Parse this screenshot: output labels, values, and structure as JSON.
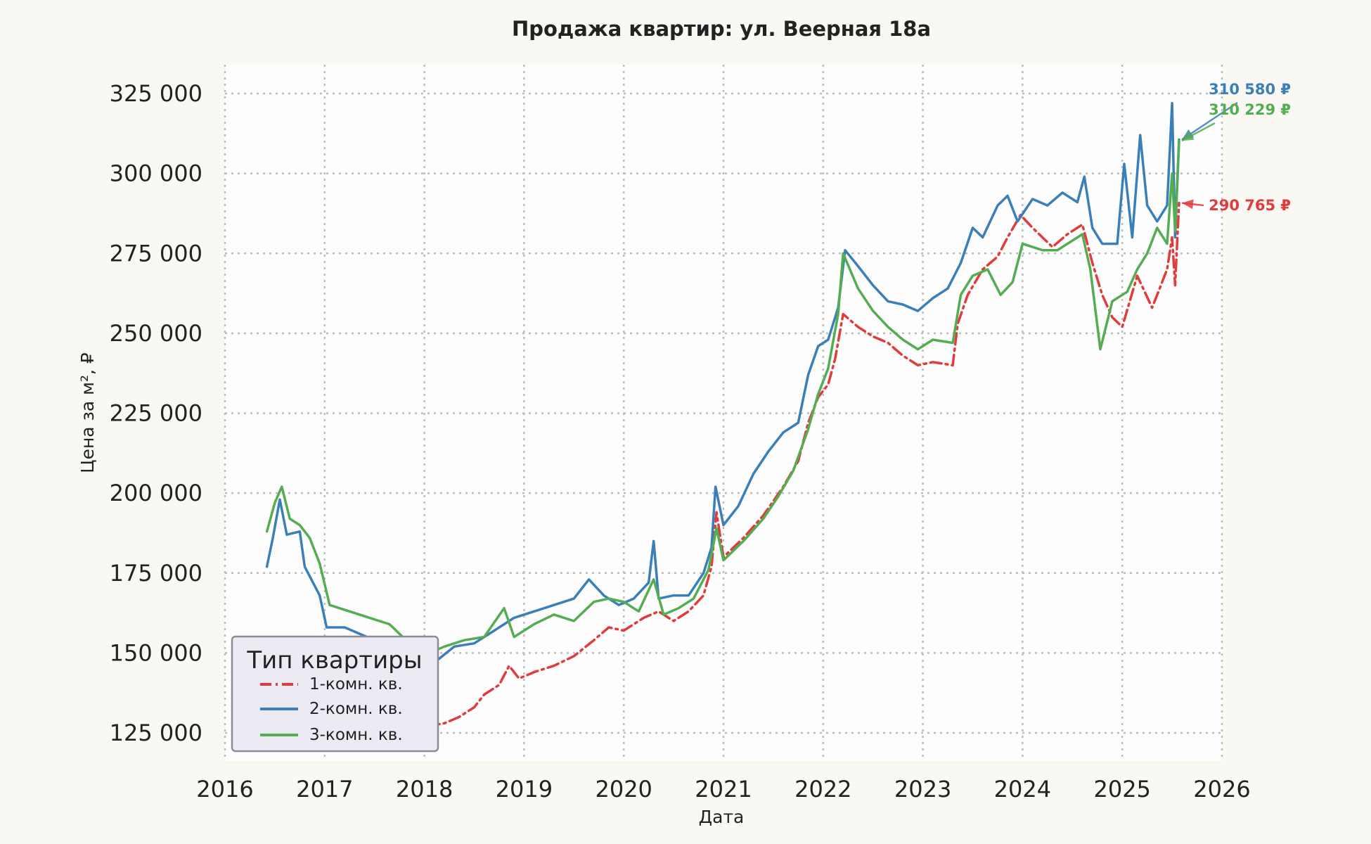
{
  "chart_data": {
    "type": "line",
    "title": "Продажа квартир: ул. Веерная 18а",
    "xlabel": "Дата",
    "ylabel": "Цена за м², ₽",
    "xlim": [
      2016,
      2026
    ],
    "ylim": [
      116000,
      334000
    ],
    "x_ticks": [
      "2016",
      "2017",
      "2018",
      "2019",
      "2020",
      "2021",
      "2022",
      "2023",
      "2024",
      "2025",
      "2026"
    ],
    "y_ticks": [
      "125 000",
      "150 000",
      "175 000",
      "200 000",
      "225 000",
      "250 000",
      "275 000",
      "300 000",
      "325 000"
    ],
    "y_tick_values": [
      125000,
      150000,
      175000,
      200000,
      225000,
      250000,
      275000,
      300000,
      325000
    ],
    "grid": true,
    "legend": {
      "title": "Тип квартиры",
      "placement": "bottom-left"
    },
    "series": [
      {
        "name": "1-комн. кв.",
        "color": "#e03c3c",
        "dash": "dashdot",
        "points": [
          [
            2016.42,
            146000
          ],
          [
            2016.55,
            144000
          ],
          [
            2016.7,
            141000
          ],
          [
            2016.85,
            139000
          ],
          [
            2017.0,
            137000
          ],
          [
            2017.2,
            134000
          ],
          [
            2017.4,
            133000
          ],
          [
            2017.6,
            132000
          ],
          [
            2017.8,
            130000
          ],
          [
            2018.0,
            127000
          ],
          [
            2018.2,
            128000
          ],
          [
            2018.35,
            130000
          ],
          [
            2018.5,
            133000
          ],
          [
            2018.6,
            137000
          ],
          [
            2018.75,
            140000
          ],
          [
            2018.85,
            146000
          ],
          [
            2018.95,
            142000
          ],
          [
            2019.1,
            144000
          ],
          [
            2019.3,
            146000
          ],
          [
            2019.5,
            149000
          ],
          [
            2019.7,
            154000
          ],
          [
            2019.85,
            158000
          ],
          [
            2020.0,
            157000
          ],
          [
            2020.2,
            161000
          ],
          [
            2020.35,
            163000
          ],
          [
            2020.5,
            160000
          ],
          [
            2020.65,
            163000
          ],
          [
            2020.8,
            168000
          ],
          [
            2020.88,
            177000
          ],
          [
            2020.93,
            194000
          ],
          [
            2021.0,
            180000
          ],
          [
            2021.2,
            186000
          ],
          [
            2021.4,
            193000
          ],
          [
            2021.6,
            202000
          ],
          [
            2021.75,
            210000
          ],
          [
            2021.85,
            222000
          ],
          [
            2021.95,
            230000
          ],
          [
            2022.05,
            234000
          ],
          [
            2022.12,
            242000
          ],
          [
            2022.2,
            256000
          ],
          [
            2022.35,
            252000
          ],
          [
            2022.5,
            249000
          ],
          [
            2022.65,
            247000
          ],
          [
            2022.8,
            243000
          ],
          [
            2022.95,
            240000
          ],
          [
            2023.1,
            241000
          ],
          [
            2023.3,
            240000
          ],
          [
            2023.35,
            253000
          ],
          [
            2023.45,
            262000
          ],
          [
            2023.6,
            270000
          ],
          [
            2023.75,
            274000
          ],
          [
            2023.85,
            280000
          ],
          [
            2023.98,
            287000
          ],
          [
            2024.1,
            283000
          ],
          [
            2024.3,
            277000
          ],
          [
            2024.45,
            281000
          ],
          [
            2024.6,
            284000
          ],
          [
            2024.7,
            272000
          ],
          [
            2024.8,
            262000
          ],
          [
            2024.9,
            255000
          ],
          [
            2025.0,
            252000
          ],
          [
            2025.15,
            268000
          ],
          [
            2025.3,
            258000
          ],
          [
            2025.45,
            270000
          ],
          [
            2025.5,
            280000
          ],
          [
            2025.53,
            265000
          ],
          [
            2025.57,
            290765
          ]
        ]
      },
      {
        "name": "2-комн. кв.",
        "color": "#3a7fb8",
        "dash": "solid",
        "points": [
          [
            2016.42,
            177000
          ],
          [
            2016.48,
            186000
          ],
          [
            2016.55,
            198000
          ],
          [
            2016.62,
            187000
          ],
          [
            2016.75,
            188000
          ],
          [
            2016.8,
            177000
          ],
          [
            2016.95,
            168000
          ],
          [
            2017.02,
            158000
          ],
          [
            2017.2,
            158000
          ],
          [
            2017.35,
            156000
          ],
          [
            2017.5,
            154000
          ],
          [
            2017.65,
            152000
          ],
          [
            2017.8,
            150000
          ],
          [
            2018.0,
            148000
          ],
          [
            2018.1,
            147000
          ],
          [
            2018.3,
            152000
          ],
          [
            2018.5,
            153000
          ],
          [
            2018.7,
            157000
          ],
          [
            2018.9,
            161000
          ],
          [
            2019.1,
            163000
          ],
          [
            2019.3,
            165000
          ],
          [
            2019.5,
            167000
          ],
          [
            2019.65,
            173000
          ],
          [
            2019.8,
            168000
          ],
          [
            2019.95,
            165000
          ],
          [
            2020.1,
            167000
          ],
          [
            2020.25,
            172000
          ],
          [
            2020.3,
            185000
          ],
          [
            2020.35,
            167000
          ],
          [
            2020.5,
            168000
          ],
          [
            2020.65,
            168000
          ],
          [
            2020.8,
            175000
          ],
          [
            2020.88,
            183000
          ],
          [
            2020.92,
            202000
          ],
          [
            2021.0,
            190000
          ],
          [
            2021.15,
            196000
          ],
          [
            2021.3,
            206000
          ],
          [
            2021.45,
            213000
          ],
          [
            2021.6,
            219000
          ],
          [
            2021.75,
            222000
          ],
          [
            2021.85,
            237000
          ],
          [
            2021.95,
            246000
          ],
          [
            2022.05,
            248000
          ],
          [
            2022.15,
            258000
          ],
          [
            2022.22,
            276000
          ],
          [
            2022.35,
            271000
          ],
          [
            2022.5,
            265000
          ],
          [
            2022.65,
            260000
          ],
          [
            2022.8,
            259000
          ],
          [
            2022.95,
            257000
          ],
          [
            2023.1,
            261000
          ],
          [
            2023.25,
            264000
          ],
          [
            2023.38,
            272000
          ],
          [
            2023.5,
            283000
          ],
          [
            2023.6,
            280000
          ],
          [
            2023.75,
            290000
          ],
          [
            2023.85,
            293000
          ],
          [
            2023.95,
            285000
          ],
          [
            2024.1,
            292000
          ],
          [
            2024.25,
            290000
          ],
          [
            2024.4,
            294000
          ],
          [
            2024.55,
            291000
          ],
          [
            2024.62,
            299000
          ],
          [
            2024.7,
            283000
          ],
          [
            2024.8,
            278000
          ],
          [
            2024.95,
            278000
          ],
          [
            2025.02,
            303000
          ],
          [
            2025.1,
            280000
          ],
          [
            2025.18,
            312000
          ],
          [
            2025.25,
            290000
          ],
          [
            2025.35,
            285000
          ],
          [
            2025.45,
            290000
          ],
          [
            2025.5,
            322000
          ],
          [
            2025.53,
            280000
          ],
          [
            2025.57,
            310580
          ]
        ]
      },
      {
        "name": "3-комн. кв.",
        "color": "#55ad51",
        "dash": "solid",
        "points": [
          [
            2016.42,
            188000
          ],
          [
            2016.5,
            197000
          ],
          [
            2016.57,
            202000
          ],
          [
            2016.65,
            192000
          ],
          [
            2016.75,
            190000
          ],
          [
            2016.85,
            186000
          ],
          [
            2016.95,
            178000
          ],
          [
            2017.05,
            165000
          ],
          [
            2017.25,
            163000
          ],
          [
            2017.45,
            161000
          ],
          [
            2017.65,
            159000
          ],
          [
            2017.85,
            153000
          ],
          [
            2018.05,
            150000
          ],
          [
            2018.2,
            152000
          ],
          [
            2018.4,
            154000
          ],
          [
            2018.6,
            155000
          ],
          [
            2018.8,
            164000
          ],
          [
            2018.9,
            155000
          ],
          [
            2019.1,
            159000
          ],
          [
            2019.3,
            162000
          ],
          [
            2019.5,
            160000
          ],
          [
            2019.7,
            166000
          ],
          [
            2019.85,
            167000
          ],
          [
            2020.0,
            166000
          ],
          [
            2020.15,
            163000
          ],
          [
            2020.3,
            173000
          ],
          [
            2020.4,
            162000
          ],
          [
            2020.55,
            164000
          ],
          [
            2020.7,
            167000
          ],
          [
            2020.85,
            176000
          ],
          [
            2020.93,
            189000
          ],
          [
            2021.0,
            179000
          ],
          [
            2021.2,
            185000
          ],
          [
            2021.4,
            192000
          ],
          [
            2021.55,
            199000
          ],
          [
            2021.7,
            207000
          ],
          [
            2021.85,
            220000
          ],
          [
            2021.95,
            231000
          ],
          [
            2022.05,
            239000
          ],
          [
            2022.15,
            256000
          ],
          [
            2022.2,
            275000
          ],
          [
            2022.35,
            264000
          ],
          [
            2022.5,
            257000
          ],
          [
            2022.65,
            252000
          ],
          [
            2022.8,
            248000
          ],
          [
            2022.95,
            245000
          ],
          [
            2023.1,
            248000
          ],
          [
            2023.3,
            247000
          ],
          [
            2023.38,
            262000
          ],
          [
            2023.5,
            268000
          ],
          [
            2023.65,
            270000
          ],
          [
            2023.78,
            262000
          ],
          [
            2023.9,
            266000
          ],
          [
            2024.0,
            278000
          ],
          [
            2024.2,
            276000
          ],
          [
            2024.35,
            276000
          ],
          [
            2024.5,
            279000
          ],
          [
            2024.6,
            281000
          ],
          [
            2024.68,
            270000
          ],
          [
            2024.78,
            245000
          ],
          [
            2024.9,
            260000
          ],
          [
            2025.05,
            263000
          ],
          [
            2025.15,
            270000
          ],
          [
            2025.25,
            275000
          ],
          [
            2025.35,
            283000
          ],
          [
            2025.45,
            278000
          ],
          [
            2025.5,
            300000
          ],
          [
            2025.53,
            282000
          ],
          [
            2025.57,
            310229
          ]
        ]
      }
    ],
    "annotations": [
      {
        "text": "310 580 ₽",
        "color": "#3a7fb8",
        "point": [
          2025.57,
          310580
        ]
      },
      {
        "text": "310 229 ₽",
        "color": "#55ad51",
        "point": [
          2025.57,
          310229
        ]
      },
      {
        "text": "290 765 ₽",
        "color": "#e03c3c",
        "point": [
          2025.57,
          290765
        ]
      }
    ]
  }
}
